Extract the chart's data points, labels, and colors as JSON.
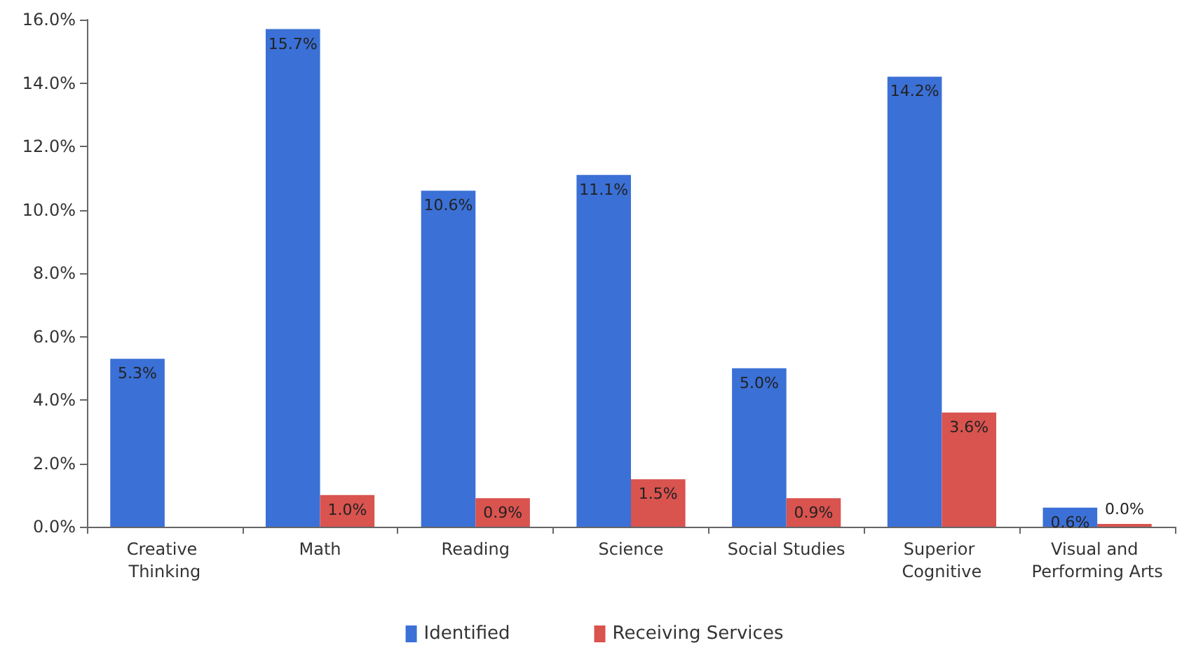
{
  "chart_data": {
    "type": "bar",
    "categories": [
      "Creative Thinking",
      "Math",
      "Reading",
      "Science",
      "Social Studies",
      "Superior Cognitive",
      "Visual and Performing Arts"
    ],
    "series": [
      {
        "name": "Identified",
        "color": "#3b70d6",
        "values": [
          5.3,
          15.7,
          10.6,
          11.1,
          5.0,
          14.2,
          0.6
        ],
        "value_labels": [
          "5.3%",
          "15.7%",
          "10.6%",
          "11.1%",
          "5.0%",
          "14.2%",
          "0.6%"
        ]
      },
      {
        "name": "Receiving Services",
        "color": "#d9534f",
        "values": [
          null,
          1.0,
          0.9,
          1.5,
          0.9,
          3.6,
          0.0
        ],
        "value_labels": [
          null,
          "1.0%",
          "0.9%",
          "1.5%",
          "0.9%",
          "3.6%",
          "0.0%"
        ]
      }
    ],
    "ylim": [
      0,
      16
    ],
    "yticks": [
      {
        "value": 0,
        "label": "0.0%"
      },
      {
        "value": 2,
        "label": "2.0%"
      },
      {
        "value": 4,
        "label": "4.0%"
      },
      {
        "value": 6,
        "label": "6.0%"
      },
      {
        "value": 8,
        "label": "8.0%"
      },
      {
        "value": 10,
        "label": "10.0%"
      },
      {
        "value": 12,
        "label": "12.0%"
      },
      {
        "value": 14,
        "label": "14.0%"
      },
      {
        "value": 16,
        "label": "16.0%"
      }
    ],
    "grid": false,
    "legend": "bottom"
  }
}
